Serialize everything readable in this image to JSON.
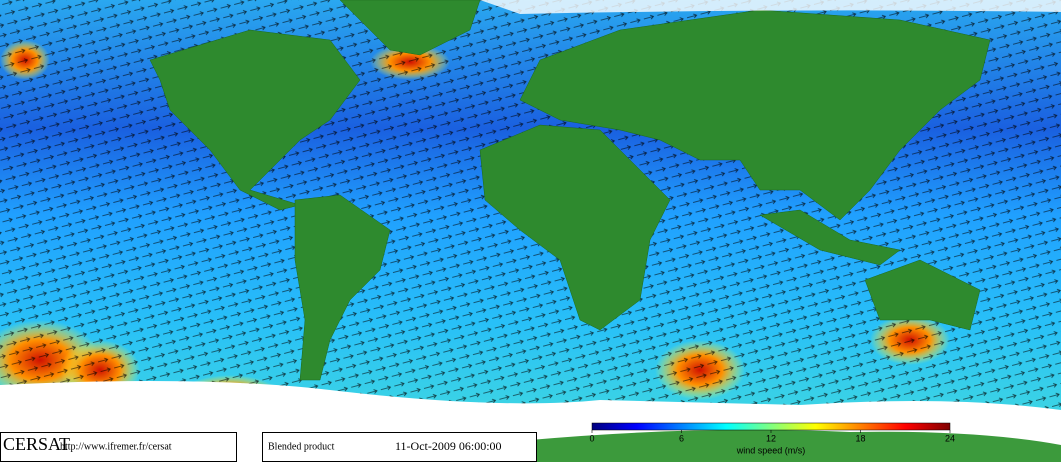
{
  "logo": {
    "name": "CERSAT",
    "url": "http://www.ifremer.fr/cersat"
  },
  "product": {
    "title": "Blended product",
    "date": "11-Oct-2009 06:00:00"
  },
  "colorbar": {
    "label": "wind speed (m/s)",
    "lim": [
      0,
      24
    ],
    "ticks": [
      0,
      6,
      12,
      18,
      24
    ],
    "colors": [
      "#00007f",
      "#0000ff",
      "#0080ff",
      "#00ffff",
      "#80ff80",
      "#ffff00",
      "#ff8000",
      "#ff0000",
      "#7f0000"
    ]
  }
}
